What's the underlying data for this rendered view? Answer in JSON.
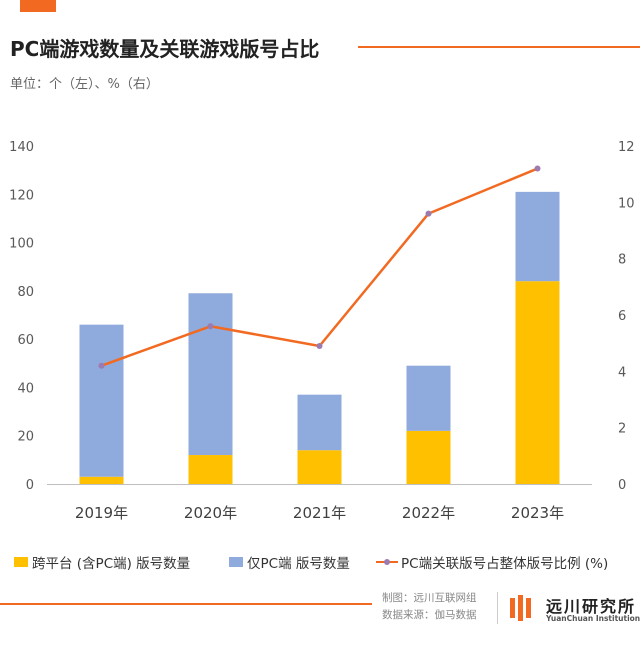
{
  "header": {
    "title": "PC端游戏数量及关联游戏版号占比",
    "subtitle": "单位：个（左）、%（右）"
  },
  "chart_data": {
    "type": "bar",
    "stacked": true,
    "categories": [
      "2019年",
      "2020年",
      "2021年",
      "2022年",
      "2023年"
    ],
    "series": [
      {
        "name": "跨平台 (含PC端) 版号数量",
        "type": "bar",
        "axis": "left",
        "color": "#ffc000",
        "values": [
          3,
          12,
          14,
          22,
          84
        ]
      },
      {
        "name": "仅PC端 版号数量",
        "type": "bar",
        "axis": "left",
        "color": "#8faadc",
        "values": [
          63,
          67,
          23,
          27,
          37
        ]
      },
      {
        "name": "PC端关联版号占整体版号比例 (%)",
        "type": "line",
        "axis": "right",
        "color": "#f26a21",
        "marker_color": "#9b7bb0",
        "values": [
          4.2,
          5.6,
          4.9,
          9.6,
          11.2
        ]
      }
    ],
    "y_left": {
      "min": 0,
      "max": 140,
      "ticks": [
        "0",
        "20",
        "40",
        "60",
        "80",
        "100",
        "120",
        "140"
      ]
    },
    "y_right": {
      "min": 0,
      "max": 12,
      "ticks": [
        "0",
        "2",
        "4",
        "6",
        "8",
        "10",
        "12"
      ]
    },
    "grid": false,
    "legend_position": "bottom"
  },
  "footer": {
    "maker": "制图：远川互联网组",
    "source": "数据来源：伽马数据",
    "logo_cn": "远川研究所",
    "logo_en": "YuanChuan Institution"
  }
}
